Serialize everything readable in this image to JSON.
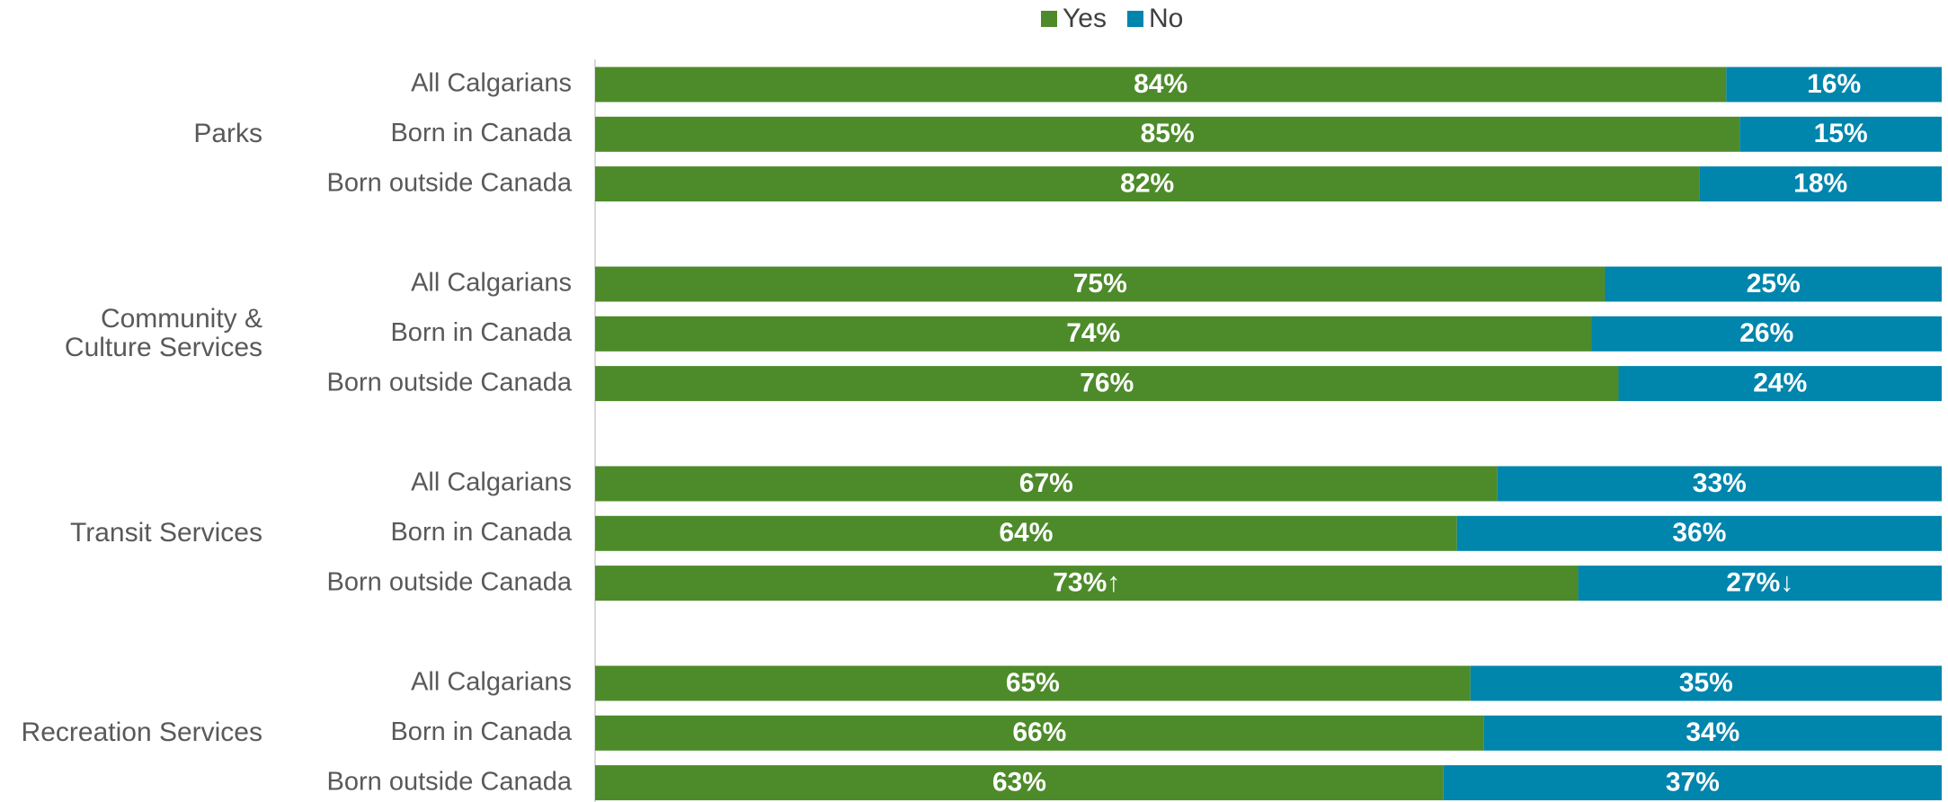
{
  "chart_data": {
    "type": "stacked-bar-horizontal",
    "groups": [
      "Parks",
      "Community &\nCulture Services",
      "Transit Services",
      "Recreation Services"
    ],
    "categories": [
      "All Calgarians",
      "Born in Canada",
      "Born outside Canada",
      "All Calgarians",
      "Born in Canada",
      "Born outside Canada",
      "All Calgarians",
      "Born in Canada",
      "Born outside Canada",
      "All Calgarians",
      "Born in Canada",
      "Born outside Canada"
    ],
    "series": [
      {
        "name": "Yes",
        "color": "#4d8b2a",
        "values": [
          84,
          85,
          82,
          75,
          74,
          76,
          67,
          64,
          73,
          65,
          66,
          63
        ],
        "value_labels": [
          "84%",
          "85%",
          "82%",
          "75%",
          "74%",
          "76%",
          "67%",
          "64%",
          "73%↑",
          "65%",
          "66%",
          "63%"
        ]
      },
      {
        "name": "No",
        "color": "#0085ad",
        "values": [
          16,
          15,
          18,
          25,
          26,
          24,
          33,
          36,
          27,
          35,
          34,
          37
        ],
        "value_labels": [
          "16%",
          "15%",
          "18%",
          "25%",
          "26%",
          "24%",
          "33%",
          "36%",
          "27%↓",
          "35%",
          "34%",
          "37%"
        ]
      }
    ],
    "legend": "top"
  }
}
